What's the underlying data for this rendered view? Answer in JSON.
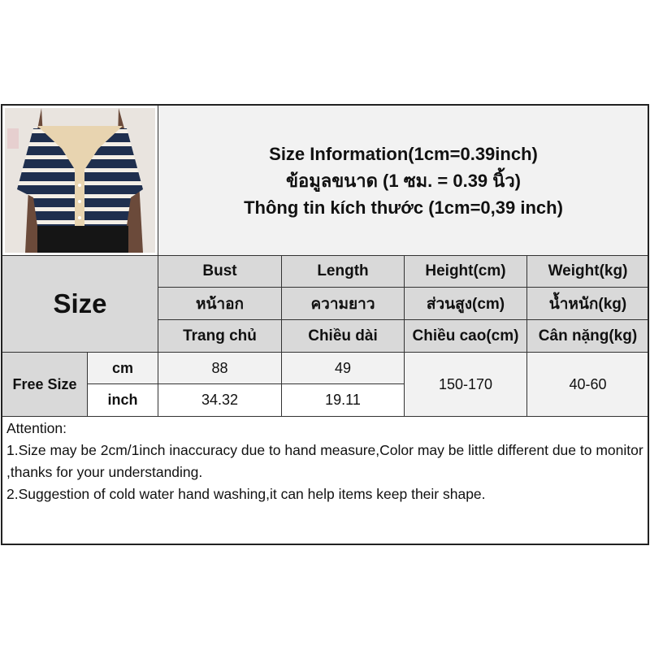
{
  "title": {
    "line1": "Size Information(1cm=0.39inch)",
    "line2": "ข้อมูลขนาด (1 ซม. = 0.39 นิ้ว)",
    "line3": "Thông tin kích thước (1cm=0,39 inch)"
  },
  "photo": {
    "icon": "striped-cardigan-product-photo"
  },
  "size_label": "Size",
  "columns": [
    {
      "en": "Bust",
      "th": "หน้าอก",
      "vi": "Trang chủ"
    },
    {
      "en": "Length",
      "th": "ความยาว",
      "vi": "Chiều dài"
    },
    {
      "en": "Height(cm)",
      "th": "ส่วนสูง(cm)",
      "vi": "Chiều cao(cm)"
    },
    {
      "en": "Weight(kg)",
      "th": "น้ำหนัก(kg)",
      "vi": "Cân nặng(kg)"
    }
  ],
  "rows": {
    "size_name": "Free Size",
    "cm": {
      "unit": "cm",
      "bust": "88",
      "length": "49"
    },
    "inch": {
      "unit": "inch",
      "bust": "34.32",
      "length": "19.11"
    },
    "height": "150-170",
    "weight": "40-60"
  },
  "notes": {
    "heading": "Attention:",
    "items": [
      "1.Size may be 2cm/1inch inaccuracy due to hand measure,Color may be little different due to monitor ,thanks for your understanding.",
      "2.Suggestion of cold water hand washing,it can help items keep their shape."
    ]
  }
}
